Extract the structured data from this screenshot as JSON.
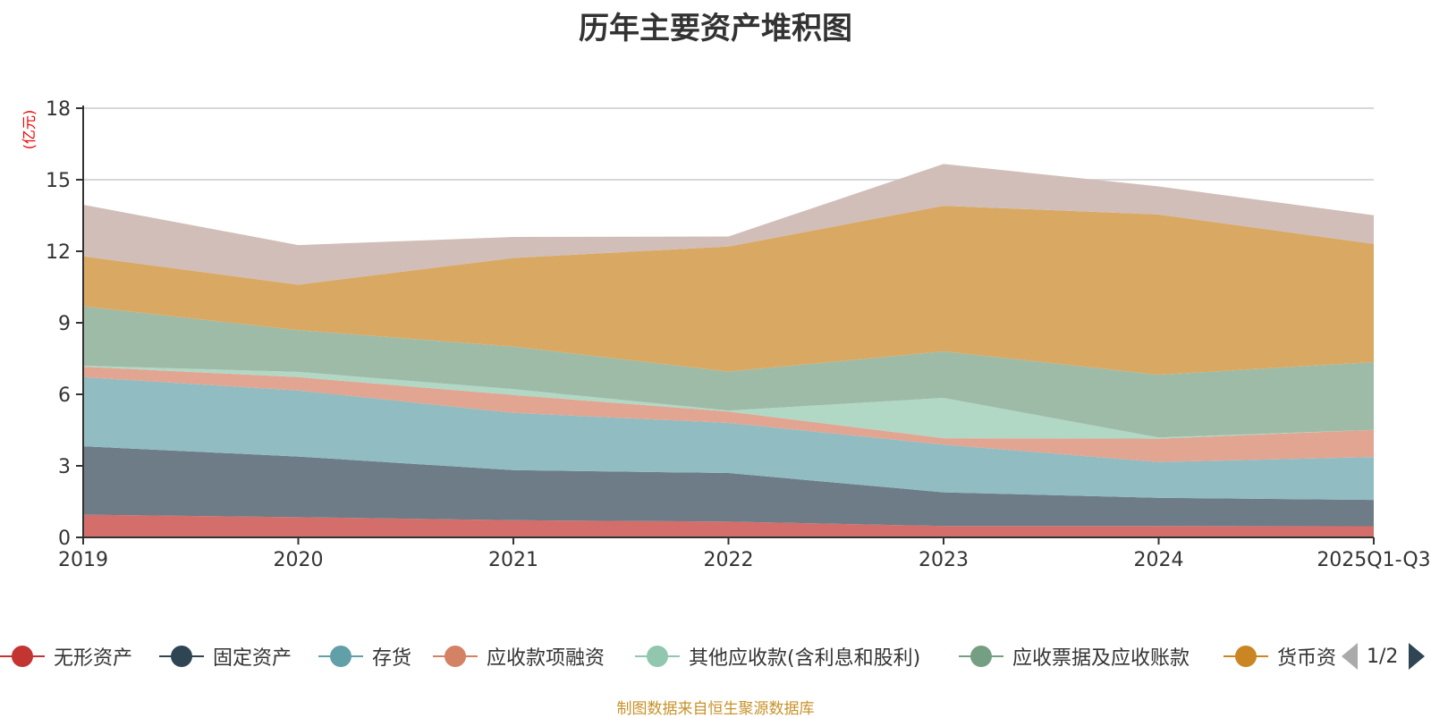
{
  "title": "历年主要资产堆积图",
  "source_note": "制图数据来自恒生聚源数据库",
  "legend_page": "1/2",
  "chart_data": {
    "type": "area",
    "stacked": true,
    "title": "历年主要资产堆积图",
    "xlabel": "",
    "ylabel": "(亿元)",
    "ylim": [
      0,
      18
    ],
    "yticks": [
      0,
      3,
      6,
      9,
      12,
      15,
      18
    ],
    "grid": true,
    "legend_position": "bottom",
    "categories": [
      "2019",
      "2020",
      "2021",
      "2022",
      "2023",
      "2024",
      "2025Q1-Q3"
    ],
    "series": [
      {
        "name": "无形资产",
        "legend_label": "无形资产",
        "color": "#c23531",
        "fill": "#d46e6b",
        "values": [
          0.95,
          0.85,
          0.72,
          0.66,
          0.48,
          0.48,
          0.47
        ]
      },
      {
        "name": "固定资产",
        "legend_label": "固定资产",
        "color": "#2f4554",
        "fill": "#6d7c87",
        "values": [
          2.87,
          2.54,
          2.1,
          2.04,
          1.41,
          1.18,
          1.1
        ]
      },
      {
        "name": "存货",
        "legend_label": "存货",
        "color": "#61a0a8",
        "fill": "#90bcc2",
        "values": [
          2.9,
          2.77,
          2.4,
          2.1,
          2.0,
          1.5,
          1.8
        ]
      },
      {
        "name": "应收款项融资",
        "legend_label": "应收款项融资",
        "color": "#d48265",
        "fill": "#e1a592",
        "values": [
          0.44,
          0.56,
          0.75,
          0.48,
          0.27,
          0.98,
          1.14
        ]
      },
      {
        "name": "其他应收款(含利息和股利)",
        "legend_label": "其他应收款(含利息和股利)",
        "color": "#91c7ae",
        "fill": "#b1d7c5",
        "values": [
          0.04,
          0.22,
          0.25,
          0.04,
          1.69,
          0.05,
          0.0
        ]
      },
      {
        "name": "应收票据及应收账款",
        "legend_label": "应收票据及应收账款",
        "color": "#749f83",
        "fill": "#9dbba7",
        "values": [
          2.49,
          1.75,
          1.78,
          1.63,
          1.95,
          2.63,
          2.84
        ]
      },
      {
        "name": "货币资金",
        "legend_label": "货币资",
        "color": "#ca8622",
        "fill": "#d9a964",
        "values": [
          2.1,
          1.91,
          3.72,
          5.25,
          6.11,
          6.72,
          4.96
        ]
      },
      {
        "name": "",
        "legend_label": "",
        "color": "#bda29a",
        "fill": "#d1beb8",
        "values": [
          2.16,
          1.66,
          0.88,
          0.42,
          1.75,
          1.18,
          1.2
        ]
      }
    ]
  }
}
